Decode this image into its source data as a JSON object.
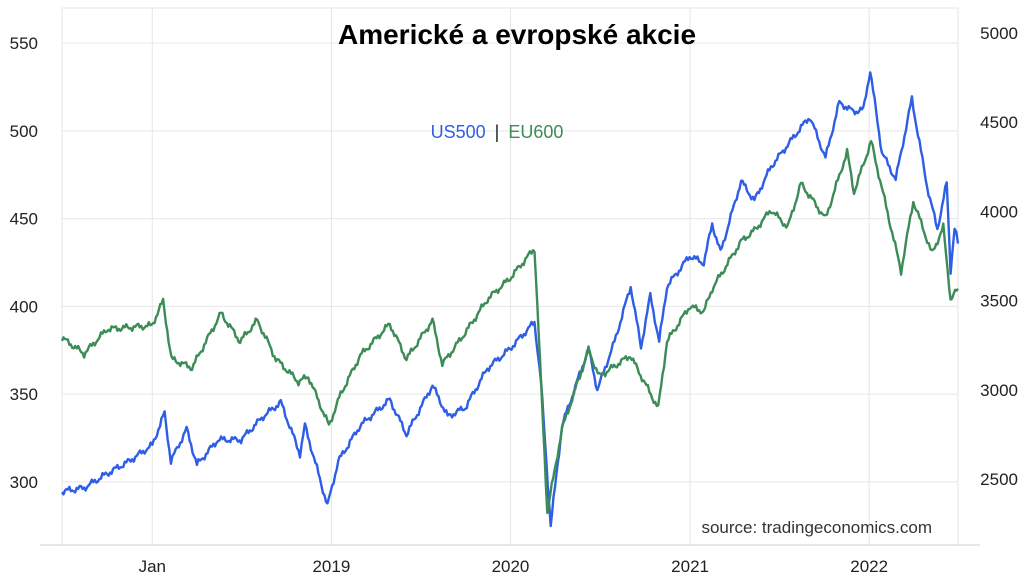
{
  "chart_data": {
    "type": "line",
    "title": "Americké a evropské akcie",
    "source": "source: tradingeconomics.com",
    "legend": {
      "separator": "|",
      "placement": "top-center"
    },
    "grid": true,
    "x_tick_labels": [
      "Jan",
      "2019",
      "2020",
      "2021",
      "2022"
    ],
    "x_tick_dates": [
      "2018-01-01",
      "2019-01-01",
      "2020-01-01",
      "2021-01-01",
      "2022-01-01"
    ],
    "x_range": [
      "2017-07-01",
      "2022-07-01"
    ],
    "left_axis": {
      "series": "EU600",
      "ylim": [
        264,
        570
      ],
      "ticks": [
        300,
        350,
        400,
        450,
        500,
        550
      ]
    },
    "right_axis": {
      "series": "US500",
      "ylim": [
        2130,
        5140
      ],
      "ticks": [
        2500,
        3000,
        3500,
        4000,
        4500,
        5000
      ]
    },
    "series": [
      {
        "name": "US500",
        "axis": "right",
        "color": "#2f5ee6",
        "points": [
          [
            "2017-07-01",
            2430
          ],
          [
            "2017-08-15",
            2450
          ],
          [
            "2017-10-01",
            2530
          ],
          [
            "2017-11-15",
            2600
          ],
          [
            "2018-01-01",
            2690
          ],
          [
            "2018-01-26",
            2870
          ],
          [
            "2018-02-08",
            2600
          ],
          [
            "2018-03-12",
            2780
          ],
          [
            "2018-04-02",
            2580
          ],
          [
            "2018-05-15",
            2720
          ],
          [
            "2018-07-01",
            2720
          ],
          [
            "2018-08-15",
            2850
          ],
          [
            "2018-09-20",
            2930
          ],
          [
            "2018-10-29",
            2640
          ],
          [
            "2018-11-08",
            2800
          ],
          [
            "2018-12-24",
            2350
          ],
          [
            "2019-01-15",
            2600
          ],
          [
            "2019-03-01",
            2800
          ],
          [
            "2019-04-30",
            2945
          ],
          [
            "2019-06-03",
            2750
          ],
          [
            "2019-07-26",
            3025
          ],
          [
            "2019-08-26",
            2850
          ],
          [
            "2019-10-01",
            2900
          ],
          [
            "2019-11-15",
            3120
          ],
          [
            "2019-12-31",
            3230
          ],
          [
            "2020-02-19",
            3380
          ],
          [
            "2020-03-03",
            3050
          ],
          [
            "2020-03-23",
            2240
          ],
          [
            "2020-04-15",
            2800
          ],
          [
            "2020-06-08",
            3230
          ],
          [
            "2020-06-26",
            3000
          ],
          [
            "2020-07-31",
            3270
          ],
          [
            "2020-09-02",
            3580
          ],
          [
            "2020-09-23",
            3240
          ],
          [
            "2020-10-12",
            3530
          ],
          [
            "2020-10-30",
            3270
          ],
          [
            "2020-11-15",
            3580
          ],
          [
            "2020-12-31",
            3750
          ],
          [
            "2021-01-29",
            3710
          ],
          [
            "2021-02-15",
            3930
          ],
          [
            "2021-03-04",
            3770
          ],
          [
            "2021-04-15",
            4170
          ],
          [
            "2021-05-12",
            4060
          ],
          [
            "2021-06-15",
            4250
          ],
          [
            "2021-08-15",
            4470
          ],
          [
            "2021-09-02",
            4530
          ],
          [
            "2021-10-04",
            4300
          ],
          [
            "2021-11-01",
            4610
          ],
          [
            "2021-11-30",
            4560
          ],
          [
            "2021-12-20",
            4570
          ],
          [
            "2022-01-03",
            4790
          ],
          [
            "2022-01-27",
            4330
          ],
          [
            "2022-02-24",
            4180
          ],
          [
            "2022-03-29",
            4630
          ],
          [
            "2022-04-29",
            4140
          ],
          [
            "2022-05-20",
            3900
          ],
          [
            "2022-06-08",
            4160
          ],
          [
            "2022-06-16",
            3670
          ],
          [
            "2022-06-24",
            3910
          ],
          [
            "2022-07-01",
            3820
          ]
        ]
      },
      {
        "name": "EU600",
        "axis": "left",
        "color": "#3c8c57",
        "points": [
          [
            "2017-07-01",
            382
          ],
          [
            "2017-08-15",
            373
          ],
          [
            "2017-10-01",
            387
          ],
          [
            "2017-11-15",
            388
          ],
          [
            "2017-12-31",
            389
          ],
          [
            "2018-01-23",
            403
          ],
          [
            "2018-02-09",
            370
          ],
          [
            "2018-03-23",
            365
          ],
          [
            "2018-05-21",
            396
          ],
          [
            "2018-06-29",
            380
          ],
          [
            "2018-08-03",
            392
          ],
          [
            "2018-09-10",
            370
          ],
          [
            "2018-10-26",
            357
          ],
          [
            "2018-11-15",
            360
          ],
          [
            "2018-12-27",
            332
          ],
          [
            "2019-01-20",
            350
          ],
          [
            "2019-03-01",
            372
          ],
          [
            "2019-04-30",
            390
          ],
          [
            "2019-06-03",
            370
          ],
          [
            "2019-07-26",
            392
          ],
          [
            "2019-08-15",
            367
          ],
          [
            "2019-10-01",
            385
          ],
          [
            "2019-11-15",
            404
          ],
          [
            "2019-12-31",
            416
          ],
          [
            "2020-02-19",
            433
          ],
          [
            "2020-03-16",
            283
          ],
          [
            "2020-04-15",
            330
          ],
          [
            "2020-06-08",
            375
          ],
          [
            "2020-06-30",
            360
          ],
          [
            "2020-09-01",
            372
          ],
          [
            "2020-10-28",
            342
          ],
          [
            "2020-11-15",
            380
          ],
          [
            "2020-12-31",
            400
          ],
          [
            "2021-01-29",
            397
          ],
          [
            "2021-02-15",
            410
          ],
          [
            "2021-04-15",
            437
          ],
          [
            "2021-05-15",
            444
          ],
          [
            "2021-06-15",
            455
          ],
          [
            "2021-07-19",
            445
          ],
          [
            "2021-08-15",
            470
          ],
          [
            "2021-10-04",
            450
          ],
          [
            "2021-11-17",
            488
          ],
          [
            "2021-12-01",
            465
          ],
          [
            "2022-01-05",
            494
          ],
          [
            "2022-03-07",
            420
          ],
          [
            "2022-04-01",
            460
          ],
          [
            "2022-05-09",
            430
          ],
          [
            "2022-06-01",
            445
          ],
          [
            "2022-06-16",
            404
          ],
          [
            "2022-07-01",
            410
          ]
        ]
      }
    ]
  }
}
